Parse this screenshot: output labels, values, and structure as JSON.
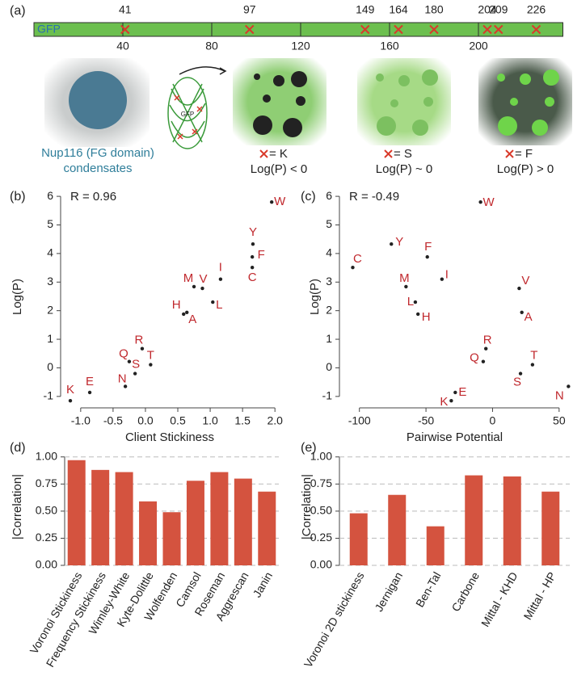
{
  "chart_data": [
    {
      "type": "sequence",
      "panel": "(a)",
      "track_label": "GFP",
      "xlim": [
        0,
        238
      ],
      "xticks": [
        40,
        80,
        120,
        160,
        200
      ],
      "mutations": [
        41,
        97,
        149,
        164,
        180,
        204,
        209,
        226
      ],
      "color": "#6cbf4f",
      "mutation_color": "#d93a2b",
      "condensate_label": [
        "Nup116 (FG domain)",
        "condensates"
      ],
      "conditions": [
        {
          "symbol": "= K",
          "caption": "Log(P) < 0"
        },
        {
          "symbol": "= S",
          "caption": "Log(P) ~ 0"
        },
        {
          "symbol": "= F",
          "caption": "Log(P) > 0"
        }
      ]
    },
    {
      "type": "scatter",
      "panel": "(b)",
      "annotation": "R = 0.96",
      "x_label": "Client Stickiness",
      "y_label": "Log(P)",
      "labels": [
        "W",
        "Y",
        "F",
        "C",
        "I",
        "M",
        "V",
        "L",
        "H",
        "A",
        "R",
        "Q",
        "T",
        "S",
        "N",
        "E",
        "K"
      ],
      "x": [
        1.95,
        1.66,
        1.65,
        1.65,
        1.16,
        0.75,
        0.88,
        1.04,
        0.59,
        0.64,
        -0.05,
        -0.25,
        0.08,
        -0.16,
        -0.31,
        -0.86,
        -1.16
      ],
      "y": [
        5.8,
        4.33,
        3.88,
        3.51,
        3.1,
        2.84,
        2.78,
        2.3,
        1.88,
        1.94,
        0.67,
        0.22,
        0.11,
        -0.2,
        -0.65,
        -0.86,
        -1.15
      ],
      "xlim": [
        -1.31,
        2.06
      ],
      "ylim": [
        -1.4,
        6.37
      ],
      "xticks": [
        {
          "value": -1,
          "label": "-1.0"
        },
        -0.5,
        {
          "value": 0,
          "label": "0.0"
        },
        0.5,
        {
          "value": 1,
          "label": "1.0"
        },
        1.5,
        {
          "value": 2,
          "label": "2.0"
        }
      ],
      "yticks": [
        -1,
        0,
        1,
        2,
        3,
        4,
        5,
        6
      ],
      "color": "#222222",
      "label_color": "#c0282d"
    },
    {
      "type": "scatter",
      "panel": "(c)",
      "annotation": "R = -0.49",
      "x_label": "Pairwise Potential",
      "y_label": "Log(P)",
      "labels": [
        "W",
        "Y",
        "F",
        "C",
        "I",
        "M",
        "V",
        "L",
        "H",
        "A",
        "R",
        "Q",
        "T",
        "S",
        "N",
        "E",
        "K"
      ],
      "x": [
        -9,
        -76,
        -49,
        -105,
        -38,
        -65,
        20,
        -58,
        -56,
        22,
        -5,
        -7,
        30,
        21,
        57,
        -28,
        -31
      ],
      "y": [
        5.8,
        4.33,
        3.88,
        3.51,
        3.1,
        2.84,
        2.78,
        2.3,
        1.88,
        1.94,
        0.67,
        0.22,
        0.11,
        -0.2,
        -0.65,
        -0.86,
        -1.15
      ],
      "xlim": [
        -115,
        58
      ],
      "ylim": [
        -1.4,
        6.37
      ],
      "xticks": [
        -100,
        -50,
        0,
        50
      ],
      "yticks": [
        -1,
        0,
        1,
        2,
        3,
        4,
        5,
        6
      ],
      "color": "#222222",
      "label_color": "#c0282d"
    },
    {
      "type": "bar",
      "panel": "(d)",
      "y_label": "|Correlation|",
      "categories": [
        "Voronoi Stickiness",
        "Frequency Stickiness",
        "Wimley-White",
        "Kyte-Dolittle",
        "Wolfenden",
        "Camsol",
        "Roseman",
        "Aggrescan",
        "Janin"
      ],
      "values": [
        0.97,
        0.88,
        0.86,
        0.59,
        0.49,
        0.78,
        0.86,
        0.8,
        0.68
      ],
      "color": "#d4533f",
      "grid": true,
      "ylim": [
        0,
        1.08
      ],
      "yticks": [
        {
          "value": 0,
          "label": "0.00"
        },
        {
          "value": 0.25,
          "label": "0.25"
        },
        {
          "value": 0.5,
          "label": "0.50"
        },
        {
          "value": 0.75,
          "label": "0.75"
        },
        {
          "value": 1,
          "label": "1.00"
        }
      ]
    },
    {
      "type": "bar",
      "panel": "(e)",
      "y_label": "|Correlation|",
      "categories": [
        "Voronoi 2D stickiness",
        "Jernigan",
        "Ben-Tal",
        "Carbone",
        "Mittal - KHD",
        "Mittal - HP"
      ],
      "values": [
        0.48,
        0.65,
        0.36,
        0.83,
        0.82,
        0.68
      ],
      "color": "#d4533f",
      "grid": true,
      "ylim": [
        0,
        1.08
      ],
      "yticks": [
        {
          "value": 0,
          "label": "0.00"
        },
        {
          "value": 0.25,
          "label": "0.25"
        },
        {
          "value": 0.5,
          "label": "0.50"
        },
        {
          "value": 0.75,
          "label": "0.75"
        },
        {
          "value": 1,
          "label": "1.00"
        }
      ]
    }
  ]
}
